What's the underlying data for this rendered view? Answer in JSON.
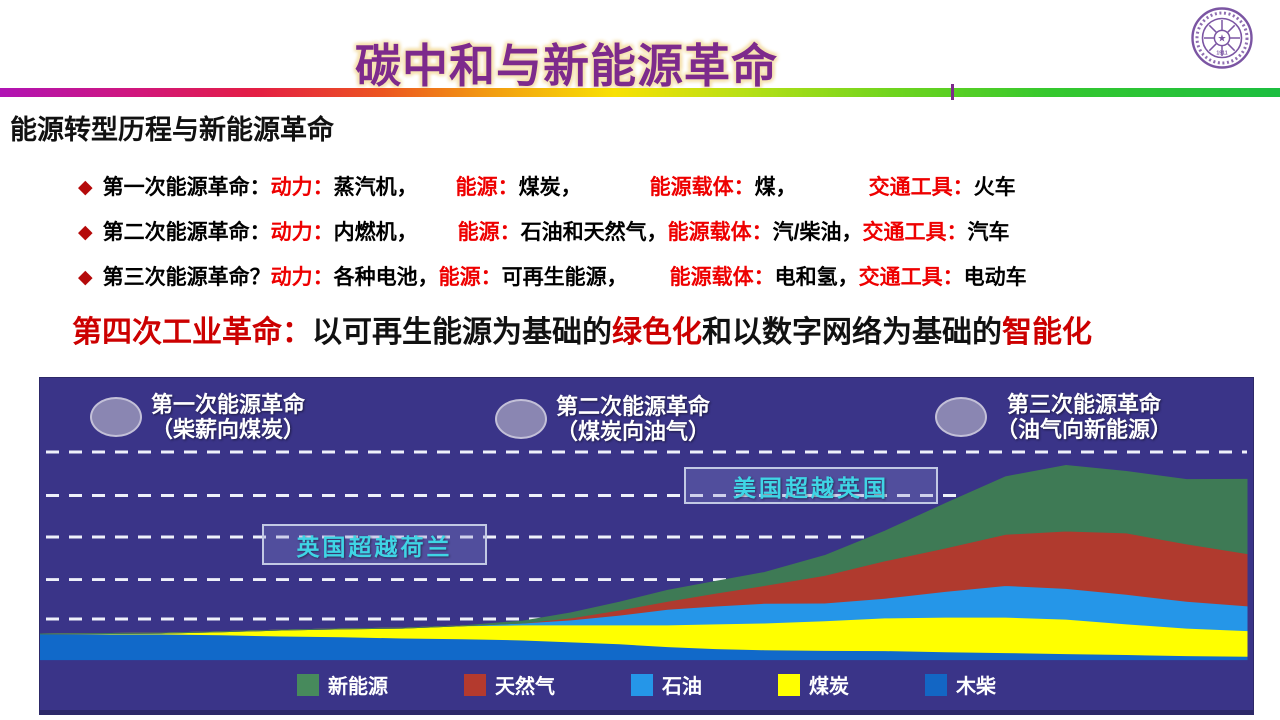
{
  "slide": {
    "title": "碳中和与新能源革命",
    "title_color": "#7d2a8c",
    "subtitle": "能源转型历程与新能源革命",
    "logo_icon": "tsinghua-university-seal",
    "logo_color": "#7b55a3",
    "bullet_red": "#ee0000",
    "revolution_red": "#cc0000",
    "diamond_color": "#b50a0a"
  },
  "bullets": [
    {
      "segments": [
        {
          "text": "第一次能源革命：",
          "color": "black"
        },
        {
          "text": "动力：",
          "color": "red"
        },
        {
          "text": "蒸汽机，",
          "color": "black"
        },
        {
          "text": "能源：",
          "color": "red",
          "gap": 38
        },
        {
          "text": "煤炭，",
          "color": "black"
        },
        {
          "text": "能源载体：",
          "color": "red",
          "gap": 68
        },
        {
          "text": "煤，",
          "color": "black"
        },
        {
          "text": "交通工具：",
          "color": "red",
          "gap": 72
        },
        {
          "text": "火车",
          "color": "black"
        }
      ]
    },
    {
      "segments": [
        {
          "text": "第二次能源革命：",
          "color": "black"
        },
        {
          "text": "动力：",
          "color": "red"
        },
        {
          "text": "内燃机，",
          "color": "black"
        },
        {
          "text": "能源：",
          "color": "red",
          "gap": 40
        },
        {
          "text": "石油和天然气，",
          "color": "black"
        },
        {
          "text": "能源载体：",
          "color": "red"
        },
        {
          "text": "汽/柴油，",
          "color": "black"
        },
        {
          "text": "交通工具：",
          "color": "red"
        },
        {
          "text": "汽车",
          "color": "black"
        }
      ]
    },
    {
      "segments": [
        {
          "text": "第三次能源革命？",
          "color": "black"
        },
        {
          "text": "动力：",
          "color": "red"
        },
        {
          "text": "各种电池，",
          "color": "black"
        },
        {
          "text": "能源：",
          "color": "red"
        },
        {
          "text": "可再生能源，",
          "color": "black"
        },
        {
          "text": "能源载体：",
          "color": "red",
          "gap": 42
        },
        {
          "text": "电和氢，",
          "color": "black"
        },
        {
          "text": "交通工具：",
          "color": "red"
        },
        {
          "text": "电动车",
          "color": "black"
        }
      ]
    }
  ],
  "revolution": {
    "segments": [
      {
        "text": "第四次工业革命：",
        "color": "red"
      },
      {
        "text": "以可再生能源为基础的",
        "color": "black"
      },
      {
        "text": "绿色化",
        "color": "red"
      },
      {
        "text": "和以数字网络为基础的",
        "color": "black"
      },
      {
        "text": "智能化",
        "color": "red"
      }
    ]
  },
  "chart_data": {
    "type": "area",
    "stacked": true,
    "title": "",
    "xlabel": "time (no tick labels shown)",
    "ylabel": "energy consumption share (no tick labels shown)",
    "units": "percent of plot height, estimated from pixels",
    "background": "#3a3488",
    "grid": true,
    "gridline_color": "#eef0fa",
    "gridlines_y_pct_from_top": [
      22.3,
      35.4,
      47.9,
      60.7,
      72.6
    ],
    "x_pct": [
      0,
      10,
      15,
      20,
      25,
      30,
      35,
      40,
      44,
      48,
      52,
      56,
      60,
      65,
      70,
      75,
      80,
      85,
      90,
      95,
      100
    ],
    "series": [
      {
        "name": "木柴",
        "color": "#1169c9",
        "values": [
          9.1,
          9.1,
          8.8,
          8.4,
          8.1,
          7.7,
          7.4,
          7.0,
          6.3,
          5.6,
          4.6,
          3.9,
          3.5,
          3.3,
          3.2,
          2.8,
          2.5,
          2.1,
          1.8,
          1.4,
          1.2
        ]
      },
      {
        "name": "煤炭",
        "color": "#ffff00",
        "values": [
          0,
          0.3,
          1.1,
          2.1,
          2.8,
          3.5,
          4.6,
          5.3,
          6.0,
          6.7,
          7.7,
          8.8,
          9.5,
          10.5,
          11.6,
          12.3,
          12.6,
          12.3,
          10.9,
          9.8,
          9.1
        ]
      },
      {
        "name": "石油",
        "color": "#2596e8",
        "values": [
          0,
          0,
          0,
          0,
          0,
          0,
          0,
          0.7,
          1.8,
          3.5,
          5.6,
          6.3,
          7.0,
          6.3,
          7.0,
          9.1,
          11.2,
          10.9,
          10.5,
          9.5,
          8.8
        ]
      },
      {
        "name": "天然气",
        "color": "#b03a2e",
        "values": [
          0,
          0,
          0,
          0,
          0,
          0,
          0,
          0,
          0.7,
          1.8,
          2.8,
          4.6,
          6.3,
          9.8,
          13.3,
          15.4,
          18.2,
          20.4,
          21.8,
          20.4,
          18.6
        ]
      },
      {
        "name": "新能源",
        "color": "#3e7a55",
        "values": [
          0,
          0,
          0,
          0,
          0,
          0,
          0,
          0.7,
          1.8,
          2.8,
          3.9,
          4.2,
          4.6,
          7.0,
          10.5,
          15.8,
          20.4,
          23.2,
          21.8,
          22.8,
          26.3
        ]
      }
    ],
    "era_labels": [
      {
        "line1": "第一次能源革命",
        "line2": "（柴薪向煤炭）"
      },
      {
        "line1": "第二次能源革命",
        "line2": "（煤炭向油气）"
      },
      {
        "line1": "第三次能源革命",
        "line2": "（油气向新能源）"
      }
    ],
    "annotations": [
      {
        "text": "英国超越荷兰",
        "text_color": "#3fd5e5"
      },
      {
        "text": "美国超越英国",
        "text_color": "#3fd5e5"
      }
    ],
    "legend_position": "bottom center",
    "legend": {
      "items": [
        {
          "label": "新能源",
          "color": "#478a5c"
        },
        {
          "label": "天然气",
          "color": "#b43a2e"
        },
        {
          "label": "石油",
          "color": "#2596e8"
        },
        {
          "label": "煤炭",
          "color": "#ffff00"
        },
        {
          "label": "木柴",
          "color": "#1366c4"
        }
      ]
    }
  }
}
